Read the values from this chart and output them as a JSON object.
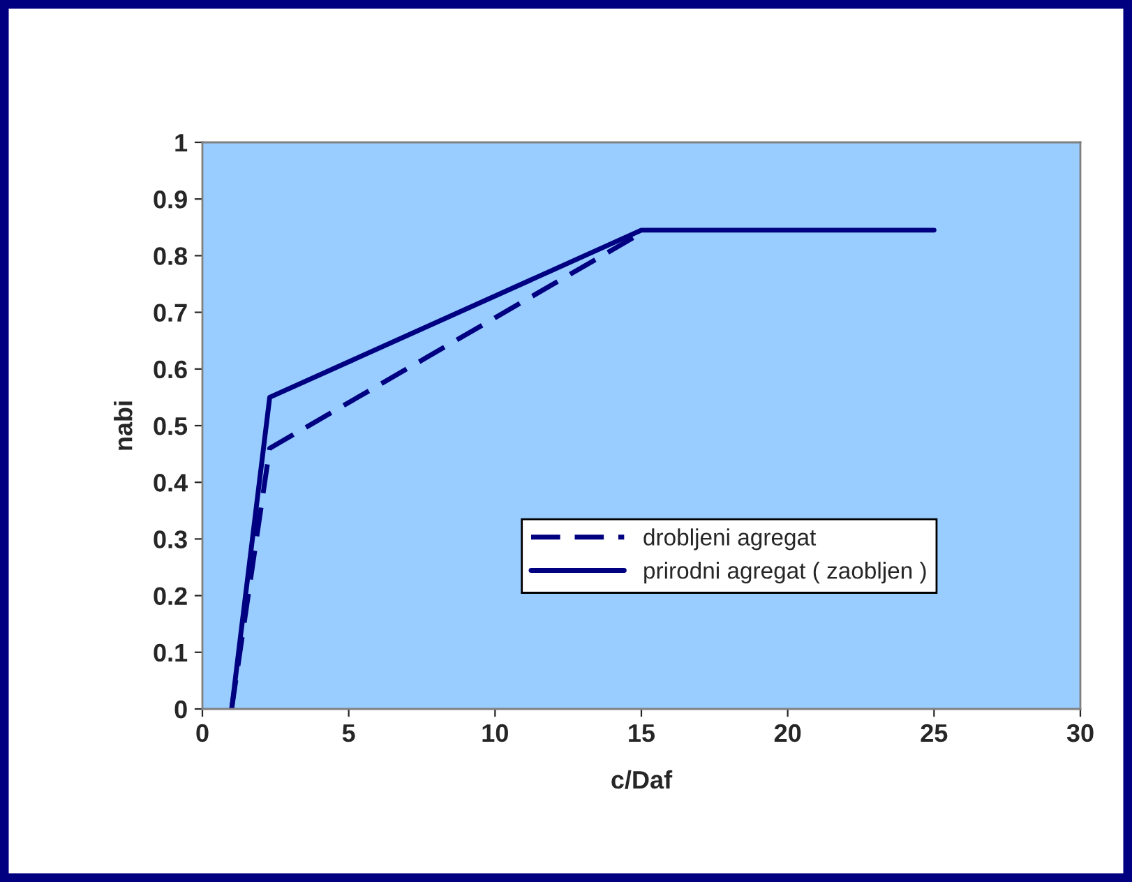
{
  "chart_data": {
    "type": "line",
    "xlabel": "c/Daf",
    "ylabel": "nabi",
    "xlim": [
      0,
      30
    ],
    "xticks": [
      0,
      5,
      10,
      15,
      20,
      25,
      30
    ],
    "ylim": [
      0,
      1
    ],
    "yticks": [
      0,
      0.1,
      0.2,
      0.3,
      0.4,
      0.5,
      0.6,
      0.7,
      0.8,
      0.9,
      1
    ],
    "grid": false,
    "legend": "bottom",
    "marker": "none",
    "series": [
      {
        "name": "drobljeni agregat",
        "color": "#000080",
        "line_style": "dashed",
        "x": [
          1,
          2.3,
          15
        ],
        "values": [
          0,
          0.46,
          0.84
        ]
      },
      {
        "name": "prirodni agregat ( zaobljen )",
        "color": "#000080",
        "line_style": "solid",
        "x": [
          1,
          2.3,
          15,
          25
        ],
        "values": [
          0,
          0.55,
          0.845,
          0.845
        ]
      }
    ]
  }
}
